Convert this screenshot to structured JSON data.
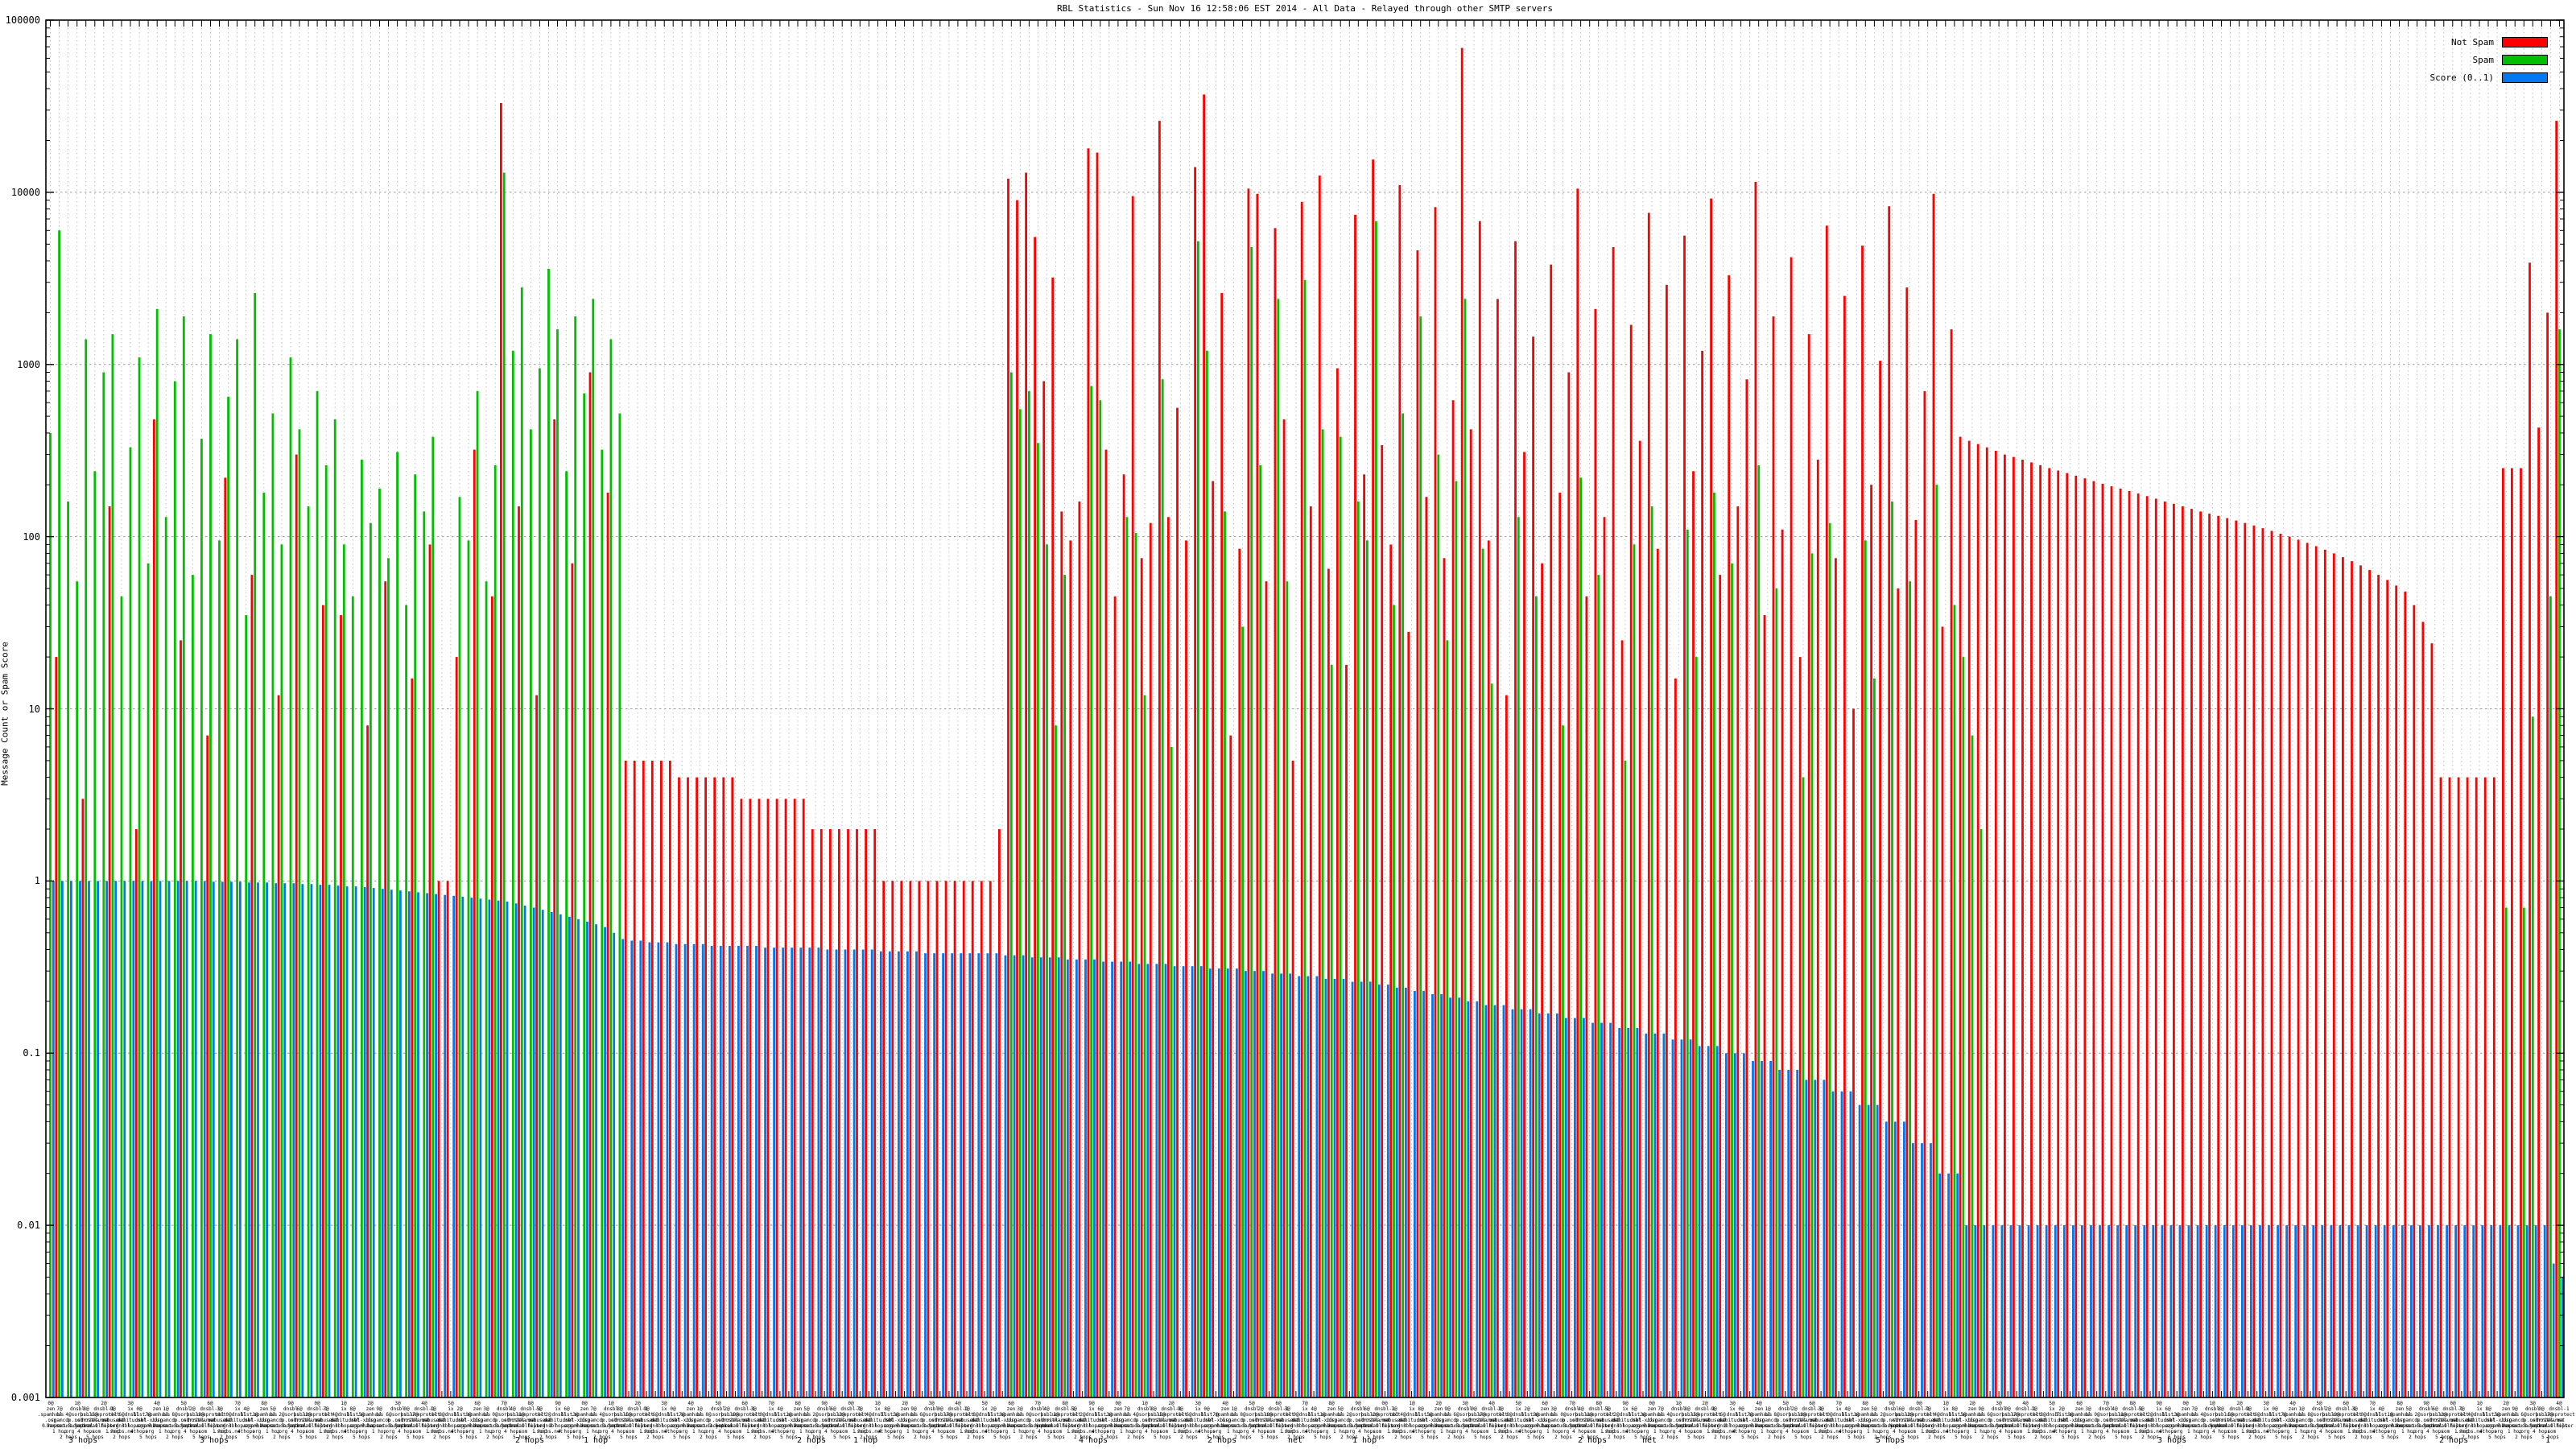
{
  "chart_data": {
    "type": "bar",
    "title": "RBL Statistics - Sun Nov 16 12:58:06 EST 2014 - All Data - Relayed through other SMTP servers",
    "xlabel": "",
    "ylabel": "Message Count or Spam Score",
    "y_scale": "log",
    "ylim": [
      0.001,
      100000
    ],
    "ytick_labels": [
      "100000",
      "10000",
      "1000",
      "100",
      "10",
      "1",
      "0.1",
      "0.01",
      "0.001"
    ],
    "grid": "dotted gray, vertical dashed line per bar group, horizontal line per decade",
    "legend_position": "top-right inside plot",
    "series_meta": [
      {
        "name": "Not Spam",
        "color": "#ff0000"
      },
      {
        "name": "Spam",
        "color": "#00bf00"
      },
      {
        "name": "Score (0..1)",
        "color": "#0078f0"
      }
    ],
    "bars_format": "[not_spam_count, spam_count, score] ; 0 = no bar ; values estimated from log axis",
    "bars": [
      [
        0,
        400,
        1
      ],
      [
        20,
        6000,
        1
      ],
      [
        0,
        160,
        1
      ],
      [
        0,
        55,
        1
      ],
      [
        3,
        1400,
        1
      ],
      [
        0,
        240,
        1
      ],
      [
        0,
        900,
        1
      ],
      [
        150,
        1500,
        1
      ],
      [
        0,
        45,
        1
      ],
      [
        0,
        330,
        1
      ],
      [
        2,
        1100,
        1
      ],
      [
        0,
        70,
        1
      ],
      [
        480,
        2100,
        1
      ],
      [
        0,
        130,
        1
      ],
      [
        0,
        800,
        1
      ],
      [
        25,
        1900,
        1
      ],
      [
        0,
        60,
        1
      ],
      [
        0,
        370,
        1
      ],
      [
        7,
        1500,
        0.99
      ],
      [
        0,
        95,
        0.99
      ],
      [
        220,
        650,
        0.99
      ],
      [
        0,
        1400,
        0.99
      ],
      [
        0,
        35,
        0.98
      ],
      [
        60,
        2600,
        0.98
      ],
      [
        0,
        180,
        0.98
      ],
      [
        0,
        520,
        0.97
      ],
      [
        12,
        90,
        0.97
      ],
      [
        0,
        1100,
        0.97
      ],
      [
        300,
        420,
        0.96
      ],
      [
        0,
        150,
        0.96
      ],
      [
        0,
        700,
        0.95
      ],
      [
        40,
        260,
        0.95
      ],
      [
        0,
        480,
        0.94
      ],
      [
        35,
        90,
        0.93
      ],
      [
        0,
        45,
        0.93
      ],
      [
        0,
        280,
        0.92
      ],
      [
        8,
        120,
        0.91
      ],
      [
        0,
        190,
        0.9
      ],
      [
        55,
        75,
        0.89
      ],
      [
        0,
        310,
        0.88
      ],
      [
        0,
        40,
        0.87
      ],
      [
        15,
        230,
        0.86
      ],
      [
        0,
        140,
        0.85
      ],
      [
        90,
        380,
        0.84
      ],
      [
        1,
        0,
        0.83
      ],
      [
        1,
        0,
        0.82
      ],
      [
        20,
        170,
        0.81
      ],
      [
        0,
        95,
        0.8
      ],
      [
        320,
        700,
        0.79
      ],
      [
        0,
        55,
        0.78
      ],
      [
        45,
        260,
        0.77
      ],
      [
        33000,
        13000,
        0.76
      ],
      [
        0,
        1200,
        0.74
      ],
      [
        150,
        2800,
        0.72
      ],
      [
        0,
        420,
        0.7
      ],
      [
        12,
        950,
        0.68
      ],
      [
        0,
        3600,
        0.66
      ],
      [
        480,
        1600,
        0.64
      ],
      [
        0,
        240,
        0.62
      ],
      [
        70,
        1900,
        0.6
      ],
      [
        0,
        680,
        0.58
      ],
      [
        900,
        2400,
        0.56
      ],
      [
        0,
        320,
        0.54
      ],
      [
        180,
        1400,
        0.5
      ],
      [
        0,
        520,
        0.46
      ],
      [
        5,
        0,
        0.45
      ],
      [
        5,
        0,
        0.45
      ],
      [
        5,
        0,
        0.44
      ],
      [
        5,
        0,
        0.44
      ],
      [
        5,
        0,
        0.44
      ],
      [
        5,
        0,
        0.43
      ],
      [
        4,
        0,
        0.43
      ],
      [
        4,
        0,
        0.43
      ],
      [
        4,
        0,
        0.43
      ],
      [
        4,
        0,
        0.42
      ],
      [
        4,
        0,
        0.42
      ],
      [
        4,
        0,
        0.42
      ],
      [
        4,
        0,
        0.42
      ],
      [
        3,
        0,
        0.42
      ],
      [
        3,
        0,
        0.42
      ],
      [
        3,
        0,
        0.41
      ],
      [
        3,
        0,
        0.41
      ],
      [
        3,
        0,
        0.41
      ],
      [
        3,
        0,
        0.41
      ],
      [
        3,
        0,
        0.41
      ],
      [
        3,
        0,
        0.41
      ],
      [
        2,
        0,
        0.41
      ],
      [
        2,
        0,
        0.4
      ],
      [
        2,
        0,
        0.4
      ],
      [
        2,
        0,
        0.4
      ],
      [
        2,
        0,
        0.4
      ],
      [
        2,
        0,
        0.4
      ],
      [
        2,
        0,
        0.4
      ],
      [
        2,
        0,
        0.39
      ],
      [
        1,
        0,
        0.39
      ],
      [
        1,
        0,
        0.39
      ],
      [
        1,
        0,
        0.39
      ],
      [
        1,
        0,
        0.39
      ],
      [
        1,
        0,
        0.38
      ],
      [
        1,
        0,
        0.38
      ],
      [
        1,
        0,
        0.38
      ],
      [
        1,
        0,
        0.38
      ],
      [
        1,
        0,
        0.38
      ],
      [
        1,
        0,
        0.38
      ],
      [
        1,
        0,
        0.38
      ],
      [
        1,
        0,
        0.38
      ],
      [
        1,
        0,
        0.38
      ],
      [
        2,
        0,
        0.37
      ],
      [
        12000,
        900,
        0.37
      ],
      [
        9000,
        550,
        0.37
      ],
      [
        13000,
        700,
        0.36
      ],
      [
        5500,
        350,
        0.36
      ],
      [
        800,
        90,
        0.36
      ],
      [
        3200,
        8,
        0.36
      ],
      [
        140,
        60,
        0.35
      ],
      [
        95,
        0,
        0.35
      ],
      [
        160,
        0,
        0.35
      ],
      [
        18000,
        750,
        0.35
      ],
      [
        17000,
        620,
        0.34
      ],
      [
        320,
        0,
        0.34
      ],
      [
        45,
        0,
        0.34
      ],
      [
        230,
        130,
        0.34
      ],
      [
        9500,
        105,
        0.33
      ],
      [
        75,
        12,
        0.33
      ],
      [
        120,
        0,
        0.33
      ],
      [
        26000,
        820,
        0.33
      ],
      [
        130,
        6,
        0.32
      ],
      [
        560,
        0,
        0.32
      ],
      [
        95,
        0,
        0.32
      ],
      [
        14000,
        5200,
        0.32
      ],
      [
        37000,
        1200,
        0.31
      ],
      [
        210,
        0,
        0.31
      ],
      [
        2600,
        140,
        0.31
      ],
      [
        7,
        0,
        0.31
      ],
      [
        85,
        30,
        0.3
      ],
      [
        10500,
        4800,
        0.3
      ],
      [
        9800,
        260,
        0.3
      ],
      [
        55,
        0,
        0.29
      ],
      [
        6200,
        2400,
        0.29
      ],
      [
        480,
        55,
        0.29
      ],
      [
        5,
        0,
        0.28
      ],
      [
        8800,
        3100,
        0.28
      ],
      [
        150,
        0,
        0.28
      ],
      [
        12500,
        420,
        0.27
      ],
      [
        65,
        18,
        0.27
      ],
      [
        950,
        380,
        0.27
      ],
      [
        18,
        0,
        0.26
      ],
      [
        7400,
        160,
        0.26
      ],
      [
        230,
        95,
        0.26
      ],
      [
        15500,
        6800,
        0.25
      ],
      [
        340,
        0,
        0.25
      ],
      [
        90,
        40,
        0.24
      ],
      [
        11000,
        520,
        0.24
      ],
      [
        28,
        0,
        0.23
      ],
      [
        4600,
        1900,
        0.23
      ],
      [
        170,
        0,
        0.22
      ],
      [
        8200,
        300,
        0.22
      ],
      [
        75,
        25,
        0.21
      ],
      [
        620,
        210,
        0.21
      ],
      [
        69000,
        2400,
        0.2
      ],
      [
        420,
        0,
        0.2
      ],
      [
        6800,
        85,
        0.19
      ],
      [
        95,
        14,
        0.19
      ],
      [
        2400,
        0,
        0.19
      ],
      [
        12,
        0,
        0.18
      ],
      [
        5200,
        130,
        0.18
      ],
      [
        310,
        0,
        0.18
      ],
      [
        1450,
        45,
        0.17
      ],
      [
        70,
        0,
        0.17
      ],
      [
        3800,
        0,
        0.17
      ],
      [
        180,
        8,
        0.16
      ],
      [
        900,
        0,
        0.16
      ],
      [
        10500,
        220,
        0.16
      ],
      [
        45,
        0,
        0.15
      ],
      [
        2100,
        60,
        0.15
      ],
      [
        130,
        0,
        0.15
      ],
      [
        4800,
        0,
        0.14
      ],
      [
        25,
        5,
        0.14
      ],
      [
        1700,
        90,
        0.14
      ],
      [
        360,
        0,
        0.13
      ],
      [
        7600,
        150,
        0.13
      ],
      [
        85,
        0,
        0.13
      ],
      [
        2900,
        0,
        0.12
      ],
      [
        15,
        0,
        0.12
      ],
      [
        5600,
        110,
        0.12
      ],
      [
        240,
        20,
        0.11
      ],
      [
        1200,
        0,
        0.11
      ],
      [
        9200,
        180,
        0.11
      ],
      [
        60,
        0,
        0.1
      ],
      [
        3300,
        70,
        0.1
      ],
      [
        150,
        0,
        0.1
      ],
      [
        820,
        0,
        0.09
      ],
      [
        11500,
        260,
        0.09
      ],
      [
        35,
        0,
        0.09
      ],
      [
        1900,
        50,
        0.08
      ],
      [
        110,
        0,
        0.08
      ],
      [
        4200,
        0,
        0.08
      ],
      [
        20,
        4,
        0.07
      ],
      [
        1500,
        80,
        0.07
      ],
      [
        280,
        0,
        0.07
      ],
      [
        6400,
        120,
        0.06
      ],
      [
        75,
        0,
        0.06
      ],
      [
        2500,
        0,
        0.06
      ],
      [
        10,
        0,
        0.05
      ],
      [
        4900,
        95,
        0.05
      ],
      [
        200,
        15,
        0.05
      ],
      [
        1050,
        0,
        0.04
      ],
      [
        8300,
        160,
        0.04
      ],
      [
        50,
        0,
        0.04
      ],
      [
        2800,
        55,
        0.03
      ],
      [
        125,
        0,
        0.03
      ],
      [
        700,
        0,
        0.03
      ],
      [
        9800,
        200,
        0.02
      ],
      [
        30,
        0,
        0.02
      ],
      [
        1600,
        40,
        0.02
      ],
      [
        380,
        20,
        0.01
      ],
      [
        360,
        7,
        0.01
      ],
      [
        345,
        2,
        0.01
      ],
      [
        330,
        0,
        0.01
      ],
      [
        315,
        0,
        0.01
      ],
      [
        300,
        0,
        0.01
      ],
      [
        290,
        0,
        0.01
      ],
      [
        280,
        0,
        0.01
      ],
      [
        270,
        0,
        0.01
      ],
      [
        260,
        0,
        0.01
      ],
      [
        250,
        0,
        0.01
      ],
      [
        242,
        0,
        0.01
      ],
      [
        234,
        0,
        0.01
      ],
      [
        226,
        0,
        0.01
      ],
      [
        218,
        0,
        0.01
      ],
      [
        210,
        0,
        0.01
      ],
      [
        203,
        0,
        0.01
      ],
      [
        196,
        0,
        0.01
      ],
      [
        190,
        0,
        0.01
      ],
      [
        184,
        0,
        0.01
      ],
      [
        178,
        0,
        0.01
      ],
      [
        172,
        0,
        0.01
      ],
      [
        166,
        0,
        0.01
      ],
      [
        160,
        0,
        0.01
      ],
      [
        155,
        0,
        0.01
      ],
      [
        150,
        0,
        0.01
      ],
      [
        145,
        0,
        0.01
      ],
      [
        140,
        0,
        0.01
      ],
      [
        136,
        0,
        0.01
      ],
      [
        132,
        0,
        0.01
      ],
      [
        128,
        0,
        0.01
      ],
      [
        124,
        0,
        0.01
      ],
      [
        120,
        0,
        0.01
      ],
      [
        116,
        0,
        0.01
      ],
      [
        112,
        0,
        0.01
      ],
      [
        108,
        0,
        0.01
      ],
      [
        104,
        0,
        0.01
      ],
      [
        100,
        0,
        0.01
      ],
      [
        96,
        0,
        0.01
      ],
      [
        92,
        0,
        0.01
      ],
      [
        88,
        0,
        0.01
      ],
      [
        84,
        0,
        0.01
      ],
      [
        80,
        0,
        0.01
      ],
      [
        76,
        0,
        0.01
      ],
      [
        72,
        0,
        0.01
      ],
      [
        68,
        0,
        0.01
      ],
      [
        64,
        0,
        0.01
      ],
      [
        60,
        0,
        0.01
      ],
      [
        56,
        0,
        0.01
      ],
      [
        52,
        0,
        0.01
      ],
      [
        48,
        0,
        0.01
      ],
      [
        40,
        0,
        0.01
      ],
      [
        32,
        0,
        0.01
      ],
      [
        24,
        0,
        0.01
      ],
      [
        4,
        0,
        0.01
      ],
      [
        4,
        0,
        0.01
      ],
      [
        4,
        0,
        0.01
      ],
      [
        4,
        0,
        0.01
      ],
      [
        4,
        0,
        0.01
      ],
      [
        4,
        0,
        0.01
      ],
      [
        4,
        0,
        0.01
      ],
      [
        250,
        0.7,
        0.01
      ],
      [
        250,
        0,
        0.01
      ],
      [
        250,
        0.7,
        0.01
      ],
      [
        3900,
        9,
        0.01
      ],
      [
        430,
        0,
        0.01
      ],
      [
        2000,
        45,
        0.006
      ],
      [
        26000,
        1600,
        0.005
      ]
    ],
    "xaxis": {
      "labels_note": "one multi-line label per bar, format 'N@rblname / M hops'; labels overlap into illegible garble",
      "count_prefixes": [
        "0@",
        "1@",
        "2@",
        "3@",
        "4@",
        "5@",
        "6@",
        "7@",
        "8@",
        "9@"
      ],
      "rbl_pool": [
        "zen.spamhaus.org",
        "bl.spamcop.net",
        "b.barracudacentral.org",
        "dnsbl.sorbs.net",
        "psbl.surriel.com",
        "hostkarma.junkemailfilter.com",
        "dnsbl-1.uceprotect.net",
        "cbl.abuseat.org",
        "dul.dnsbl.sorbs.net",
        "ix.dnsbl.manitu.net",
        "list.dsbl.org",
        "sbl-xbl.spamhaus.org"
      ],
      "hops_pool": [
        "0 hops",
        "1 hop",
        "2 hops",
        "3 hops",
        "4 hops",
        "5 hops"
      ],
      "readable_fragments": [
        {
          "x": 105,
          "t": "3 hops"
        },
        {
          "x": 268,
          "t": "3 hops"
        },
        {
          "x": 660,
          "t": "2 hops"
        },
        {
          "x": 745,
          "t": "1 hop"
        },
        {
          "x": 1010,
          "t": "2 hops"
        },
        {
          "x": 1080,
          "t": "1 hop"
        },
        {
          "x": 1360,
          "t": "4 hops"
        },
        {
          "x": 1520,
          "t": "2 hops"
        },
        {
          "x": 1620,
          "t": "net"
        },
        {
          "x": 1700,
          "t": "1 hop"
        },
        {
          "x": 1980,
          "t": "2 hops"
        },
        {
          "x": 2060,
          "t": "net"
        },
        {
          "x": 2350,
          "t": "5 hops"
        },
        {
          "x": 2700,
          "t": "3 hops"
        },
        {
          "x": 3050,
          "t": "2 hops"
        },
        {
          "x": 3182,
          "t": "1"
        }
      ]
    },
    "legend": [
      {
        "label": "Not Spam",
        "color": "#ff0000"
      },
      {
        "label": "Spam",
        "color": "#00bf00"
      },
      {
        "label": "Score (0..1)",
        "color": "#0078f0"
      }
    ]
  }
}
